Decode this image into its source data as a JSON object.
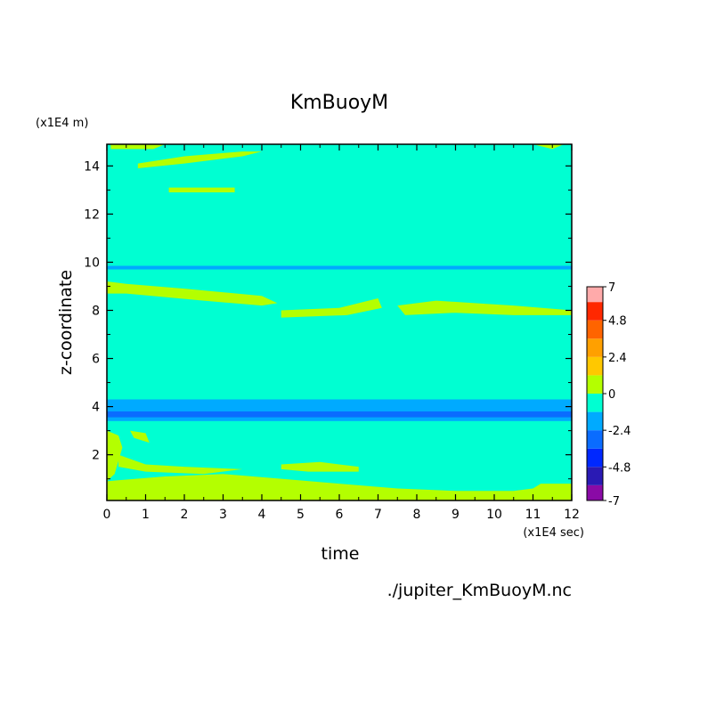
{
  "chart_data": {
    "type": "heatmap",
    "title": "KmBuoyM",
    "xlabel": "time",
    "ylabel": "z-coordinate",
    "x_unit": "(x1E4 sec)",
    "y_unit": "(x1E4 m)",
    "source_file": "./jupiter_KmBuoyM.nc",
    "xlim": [
      0,
      12
    ],
    "ylim": [
      0.1,
      14.9
    ],
    "x_ticks": [
      "0",
      "1",
      "2",
      "3",
      "4",
      "5",
      "6",
      "7",
      "8",
      "9",
      "10",
      "11",
      "12"
    ],
    "y_ticks": [
      "2",
      "4",
      "6",
      "8",
      "10",
      "12",
      "14"
    ],
    "colorbar": {
      "tick_labels": [
        "7",
        "4.8",
        "2.4",
        "0",
        "-2.4",
        "-4.8",
        "-7"
      ],
      "levels": [
        {
          "min": -7.0,
          "max": -6.0,
          "color": "#8a0aa6"
        },
        {
          "min": -6.0,
          "max": -4.8,
          "color": "#2a1ab4"
        },
        {
          "min": -4.8,
          "max": -3.6,
          "color": "#0028ff"
        },
        {
          "min": -3.6,
          "max": -2.4,
          "color": "#0a6cff"
        },
        {
          "min": -2.4,
          "max": -1.2,
          "color": "#00aaff"
        },
        {
          "min": -1.2,
          "max": 0.0,
          "color": "#00ffd2"
        },
        {
          "min": 0.0,
          "max": 1.2,
          "color": "#b4ff00"
        },
        {
          "min": 1.2,
          "max": 2.4,
          "color": "#ffc800"
        },
        {
          "min": 2.4,
          "max": 3.6,
          "color": "#ffa000"
        },
        {
          "min": 3.6,
          "max": 4.8,
          "color": "#ff6400"
        },
        {
          "min": 4.8,
          "max": 6.0,
          "color": "#ff2800"
        },
        {
          "min": 6.0,
          "max": 7.0,
          "color": "#ffaaaa"
        }
      ]
    },
    "background_value": -0.6,
    "bands": [
      {
        "name": "cyan-band-9.8",
        "value": -1.8,
        "x_from": 0,
        "x_to": 12,
        "y_from": 9.7,
        "y_to": 9.85
      },
      {
        "name": "blue-band-upper",
        "value": -1.8,
        "x_from": 0,
        "x_to": 12,
        "y_from": 3.8,
        "y_to": 4.3
      },
      {
        "name": "blue-band-lower",
        "value": -1.8,
        "x_from": 0,
        "x_to": 12,
        "y_from": 3.4,
        "y_to": 3.55
      },
      {
        "name": "dark-blue-band",
        "value": -3.0,
        "x_from": 0,
        "x_to": 12,
        "y_from": 3.55,
        "y_to": 3.8
      }
    ],
    "regions": [
      {
        "name": "top-edge",
        "value": 0.6,
        "points": [
          [
            0.1,
            14.9
          ],
          [
            1.5,
            14.9
          ],
          [
            1.2,
            14.7
          ],
          [
            0.1,
            14.7
          ]
        ]
      },
      {
        "name": "top-edge-right",
        "value": 0.6,
        "points": [
          [
            11,
            14.9
          ],
          [
            11.8,
            14.9
          ],
          [
            11.5,
            14.7
          ]
        ]
      },
      {
        "name": "upper-streak",
        "value": 0.6,
        "points": [
          [
            0.8,
            13.9
          ],
          [
            2.0,
            14.1
          ],
          [
            3.5,
            14.4
          ],
          [
            4.0,
            14.6
          ],
          [
            3.5,
            14.6
          ],
          [
            2.0,
            14.4
          ],
          [
            0.8,
            14.1
          ]
        ]
      },
      {
        "name": "small-streak-13",
        "value": 0.6,
        "points": [
          [
            1.6,
            12.9
          ],
          [
            3.3,
            12.9
          ],
          [
            3.3,
            13.1
          ],
          [
            1.6,
            13.1
          ]
        ]
      },
      {
        "name": "mid-streak-left",
        "value": 0.6,
        "points": [
          [
            0.0,
            9.2
          ],
          [
            0.5,
            9.1
          ],
          [
            2.0,
            8.9
          ],
          [
            4.0,
            8.6
          ],
          [
            4.4,
            8.3
          ],
          [
            4.0,
            8.2
          ],
          [
            2.5,
            8.4
          ],
          [
            0.5,
            8.7
          ],
          [
            0.0,
            8.7
          ]
        ]
      },
      {
        "name": "mid-streak-a",
        "value": 0.6,
        "points": [
          [
            4.5,
            8.0
          ],
          [
            6.0,
            8.1
          ],
          [
            6.5,
            8.3
          ],
          [
            7.0,
            8.5
          ],
          [
            7.1,
            8.1
          ],
          [
            6.2,
            7.8
          ],
          [
            4.5,
            7.7
          ]
        ]
      },
      {
        "name": "mid-streak-b",
        "value": 0.6,
        "points": [
          [
            7.5,
            8.2
          ],
          [
            8.5,
            8.4
          ],
          [
            9.5,
            8.3
          ],
          [
            10.5,
            8.2
          ],
          [
            12,
            8.0
          ],
          [
            12,
            7.8
          ],
          [
            10.5,
            7.8
          ],
          [
            9.0,
            7.9
          ],
          [
            7.7,
            7.8
          ]
        ]
      },
      {
        "name": "lower-blob-left",
        "value": 0.6,
        "points": [
          [
            0,
            3.0
          ],
          [
            0.3,
            2.8
          ],
          [
            0.4,
            2.3
          ],
          [
            0.2,
            1.2
          ],
          [
            0,
            0.9
          ]
        ]
      },
      {
        "name": "lower-blob-small",
        "value": 0.6,
        "points": [
          [
            0.6,
            3.0
          ],
          [
            1.0,
            2.9
          ],
          [
            1.1,
            2.5
          ],
          [
            0.7,
            2.7
          ]
        ]
      },
      {
        "name": "lower-streak-1",
        "value": 0.6,
        "points": [
          [
            0.3,
            2.0
          ],
          [
            1.0,
            1.6
          ],
          [
            2.0,
            1.5
          ],
          [
            3.5,
            1.4
          ],
          [
            2.5,
            1.2
          ],
          [
            1.0,
            1.3
          ],
          [
            0.3,
            1.5
          ]
        ]
      },
      {
        "name": "lower-streak-2",
        "value": 0.6,
        "points": [
          [
            4.5,
            1.6
          ],
          [
            5.5,
            1.7
          ],
          [
            6.5,
            1.5
          ],
          [
            6.5,
            1.3
          ],
          [
            5.2,
            1.3
          ],
          [
            4.5,
            1.4
          ]
        ]
      },
      {
        "name": "bottom-streak",
        "value": 0.6,
        "points": [
          [
            0,
            0.9
          ],
          [
            1.5,
            1.1
          ],
          [
            3.0,
            1.2
          ],
          [
            4.5,
            1.0
          ],
          [
            6.0,
            0.8
          ],
          [
            7.5,
            0.6
          ],
          [
            9.0,
            0.5
          ],
          [
            10.5,
            0.5
          ],
          [
            11.0,
            0.6
          ],
          [
            11.2,
            0.8
          ],
          [
            12,
            0.8
          ],
          [
            12,
            0.1
          ],
          [
            0,
            0.1
          ]
        ]
      }
    ]
  }
}
